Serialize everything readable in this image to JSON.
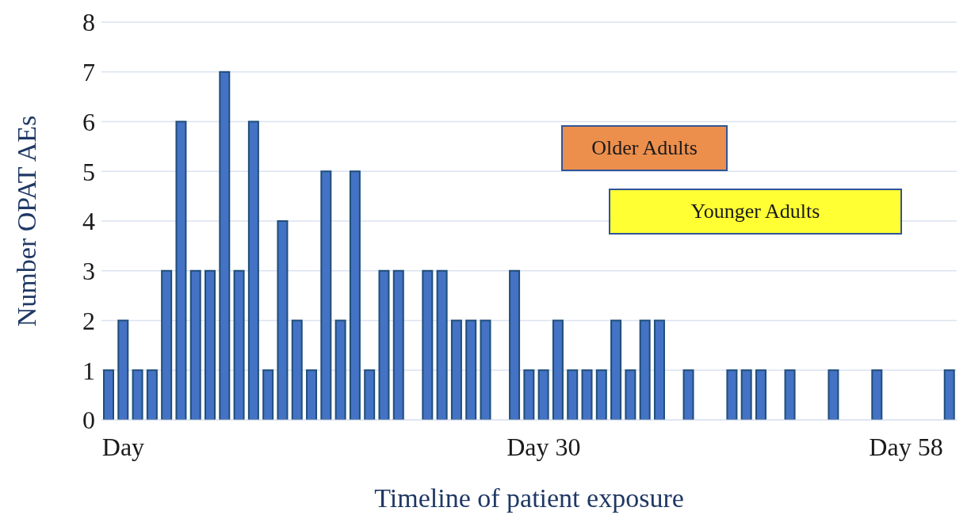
{
  "chart_data": {
    "type": "bar",
    "xlabel": "Timeline of patient exposure",
    "ylabel": "Number OPAT AEs",
    "categories": [
      null,
      "Day",
      null,
      null,
      null,
      null,
      null,
      null,
      null,
      null,
      null,
      null,
      null,
      null,
      null,
      null,
      null,
      null,
      null,
      null,
      null,
      null,
      null,
      null,
      null,
      null,
      null,
      null,
      null,
      null,
      "Day 30",
      null,
      null,
      null,
      null,
      null,
      null,
      null,
      null,
      null,
      null,
      null,
      null,
      null,
      null,
      null,
      null,
      null,
      null,
      null,
      null,
      null,
      null,
      null,
      null,
      "Day 58",
      null,
      null,
      null
    ],
    "values": [
      1,
      2,
      1,
      1,
      3,
      6,
      3,
      3,
      7,
      3,
      6,
      1,
      4,
      2,
      1,
      5,
      2,
      5,
      1,
      3,
      3,
      0,
      3,
      3,
      2,
      2,
      2,
      0,
      3,
      1,
      1,
      2,
      1,
      1,
      1,
      2,
      1,
      2,
      2,
      0,
      1,
      0,
      0,
      1,
      1,
      1,
      0,
      1,
      0,
      0,
      1,
      0,
      0,
      1,
      0,
      0,
      0,
      0,
      1
    ],
    "color": "#4472c4",
    "ylim": [
      0,
      8
    ],
    "yticks": [
      0,
      1,
      2,
      3,
      4,
      5,
      6,
      7,
      8
    ],
    "grid": "y",
    "annotations": [
      "Older Adults",
      "Younger Adults"
    ]
  }
}
